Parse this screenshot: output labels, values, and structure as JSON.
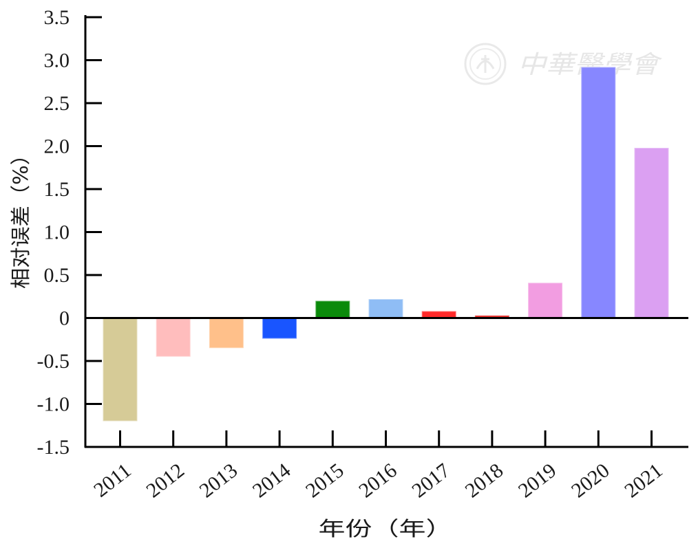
{
  "watermark": {
    "text": "中華醫學會",
    "color": "#e4e4e4"
  },
  "chart_data": {
    "type": "bar",
    "title": "",
    "xlabel": "年份（年）",
    "ylabel": "相对误差（%）",
    "ylim": [
      -1.5,
      3.5
    ],
    "yticks": [
      3.5,
      3.0,
      2.5,
      2.0,
      1.5,
      1.0,
      0.5,
      0,
      -0.5,
      -1.0,
      -1.5
    ],
    "ytick_labels": [
      "3.5",
      "3.0",
      "2.5",
      "2.0",
      "1.5",
      "1.0",
      "0.5",
      "0",
      "-0.5",
      "-1.0",
      "-1.5"
    ],
    "categories": [
      "2011",
      "2012",
      "2013",
      "2014",
      "2015",
      "2016",
      "2017",
      "2018",
      "2019",
      "2020",
      "2021"
    ],
    "values": [
      -1.2,
      -0.45,
      -0.35,
      -0.24,
      0.2,
      0.22,
      0.08,
      0.03,
      0.41,
      2.92,
      1.98
    ],
    "colors": [
      "#d6cb97",
      "#ffbdbd",
      "#ffc08a",
      "#1955ff",
      "#0a8a0a",
      "#8fbdf5",
      "#ff2a2a",
      "#e8231e",
      "#f29de1",
      "#8787ff",
      "#dba0f2"
    ],
    "grid": false,
    "legend": "none"
  }
}
